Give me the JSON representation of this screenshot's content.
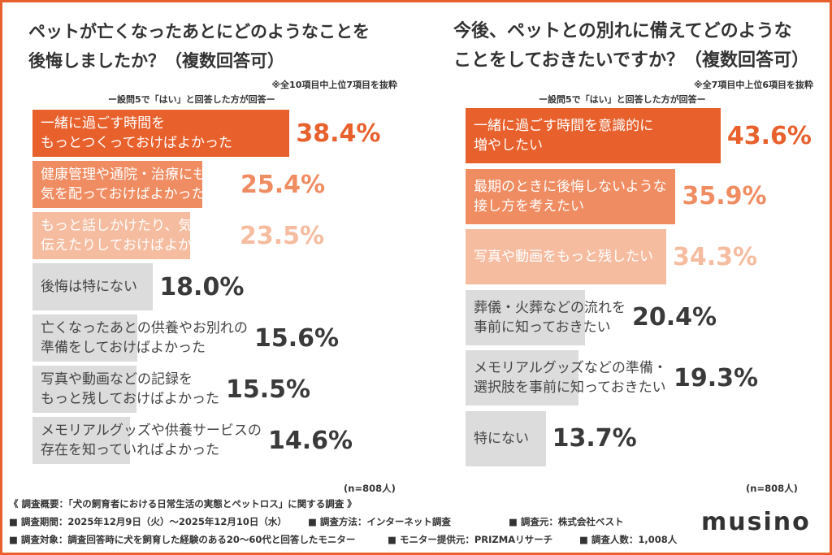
{
  "chart_data": [
    {
      "type": "hbar",
      "title": "ペットが亡くなったあとにどのようなことを\n後悔しましたか？（複数回答可）",
      "note": "※全10項目中上位7項目を抜粋",
      "subtitle": "ー設問5で「はい」と回答した方が回答ー",
      "categories": [
        "一緒に過ごす時間を\nもっとつくっておけばよかった",
        "健康管理や通院・治療にもっと\n気を配っておけばよかった",
        "もっと話しかけたり、気持ちを\n伝えたりしておけばよかった",
        "後悔は特にない",
        "亡くなったあとの供養やお別れの\n準備をしておけばよかった",
        "写真や動画などの記録を\nもっと残しておけばよかった",
        "メモリアルグッズや供養サービスの\n存在を知っていればよかった"
      ],
      "values": [
        38.4,
        25.4,
        23.5,
        18.0,
        15.6,
        15.5,
        14.6
      ],
      "value_labels": [
        "38.4%",
        "25.4%",
        "23.5%",
        "18.0%",
        "15.6%",
        "15.5%",
        "14.6%"
      ],
      "colors": [
        "#e8602c",
        "#f08c62",
        "#f6bca0",
        "#dcdcdc",
        "#dcdcdc",
        "#dcdcdc",
        "#dcdcdc"
      ],
      "label_colors": [
        "#ffffff",
        "#ffffff",
        "#ffffff",
        "#444444",
        "#444444",
        "#444444",
        "#444444"
      ],
      "value_label_colors": [
        "#e8602c",
        "#f08c62",
        "#f6bca0",
        "#3a3a3a",
        "#3a3a3a",
        "#3a3a3a",
        "#3a3a3a"
      ],
      "xlim": [
        0,
        50
      ],
      "n_label": "(n=808人)"
    },
    {
      "type": "hbar",
      "title": "今後、ペットとの別れに備えてどのような\nことをしておきたいですか？（複数回答可）",
      "note": "※全7項目中上位6項目を抜粋",
      "subtitle": "ー設問5で「はい」と回答した方が回答ー",
      "categories": [
        "一緒に過ごす時間を意識的に\n増やしたい",
        "最期のときに後悔しないような\n接し方を考えたい",
        "写真や動画をもっと残したい",
        "葬儀・火葬などの流れを\n事前に知っておきたい",
        "メモリアルグッズなどの準備・\n選択肢を事前に知っておきたい",
        "特にない"
      ],
      "values": [
        43.6,
        35.9,
        34.3,
        20.4,
        19.3,
        13.7
      ],
      "value_labels": [
        "43.6%",
        "35.9%",
        "34.3%",
        "20.4%",
        "19.3%",
        "13.7%"
      ],
      "colors": [
        "#e8602c",
        "#f08c62",
        "#f6bca0",
        "#dcdcdc",
        "#dcdcdc",
        "#dcdcdc"
      ],
      "label_colors": [
        "#ffffff",
        "#ffffff",
        "#ffffff",
        "#444444",
        "#444444",
        "#444444"
      ],
      "value_label_colors": [
        "#e8602c",
        "#f08c62",
        "#f6bca0",
        "#3a3a3a",
        "#3a3a3a",
        "#3a3a3a"
      ],
      "xlim": [
        0,
        50
      ],
      "n_label": "(n=808人)"
    }
  ],
  "footer": {
    "heading": "《 調査概要：「犬の飼育者における日常生活の実態とペットロス」に関する調査 》",
    "items": [
      "調査期間：2025年12月9日（火）～2025年12月10日（水）",
      "調査方法：インターネット調査",
      "調査元：株式会社ベスト",
      "調査対象：調査回答時に犬を飼育した経験のある20～60代と回答したモニター",
      "モニター提供元：PRIZMAリサーチ",
      "調査人数：1,008人"
    ],
    "logo": "musino"
  }
}
